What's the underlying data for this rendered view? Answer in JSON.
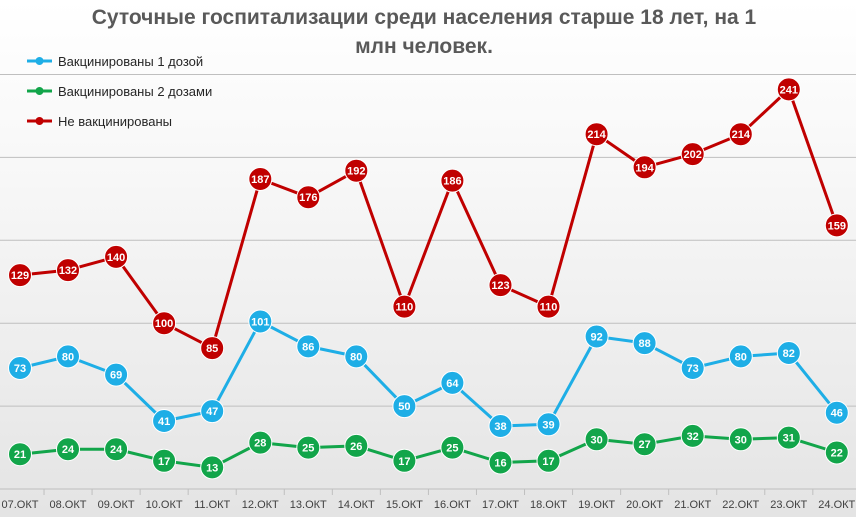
{
  "chart_data": {
    "type": "line",
    "title": "Суточные госпитализации среди населения старше 18 лет, на 1 млн человек.",
    "title_lines": [
      "Суточные госпитализации среди населения старше 18 лет, на 1",
      "млн человек."
    ],
    "categories": [
      "07.ОКТ",
      "08.ОКТ",
      "09.ОКТ",
      "10.ОКТ",
      "11.ОКТ",
      "12.ОКТ",
      "13.ОКТ",
      "14.ОКТ",
      "15.ОКТ",
      "16.ОКТ",
      "17.ОКТ",
      "18.ОКТ",
      "19.ОКТ",
      "20.ОКТ",
      "21.ОКТ",
      "22.ОКТ",
      "23.ОКТ",
      "24.ОКТ"
    ],
    "series": [
      {
        "name": "Вакцинированы 1 дозой",
        "color": "#1eaee6",
        "values": [
          73,
          80,
          69,
          41,
          47,
          101,
          86,
          80,
          50,
          64,
          38,
          39,
          92,
          88,
          73,
          80,
          82,
          46
        ]
      },
      {
        "name": "Вакцинированы 2 дозами",
        "color": "#12a54a",
        "values": [
          21,
          24,
          24,
          17,
          13,
          28,
          25,
          26,
          17,
          25,
          16,
          17,
          30,
          27,
          32,
          30,
          31,
          22
        ]
      },
      {
        "name": "Не вакцинированы",
        "color": "#c00000",
        "values": [
          129,
          132,
          140,
          100,
          85,
          187,
          176,
          192,
          110,
          186,
          123,
          110,
          214,
          194,
          202,
          214,
          241,
          159
        ]
      }
    ],
    "ylim": [
      0,
      250
    ],
    "grid": true,
    "legend_position": "top-left",
    "data_labels": true,
    "xlabel": "",
    "ylabel": ""
  }
}
